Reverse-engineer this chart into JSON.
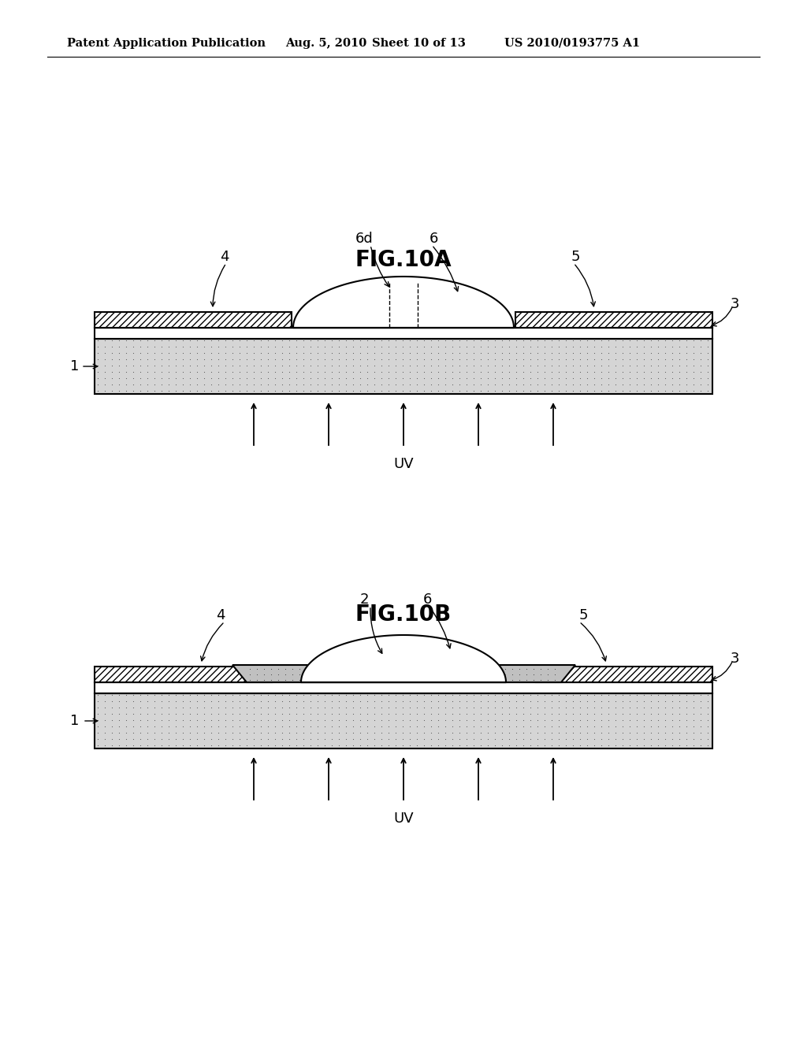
{
  "header_left": "Patent Application Publication",
  "header_date": "Aug. 5, 2010",
  "header_sheet": "Sheet 10 of 13",
  "header_right": "US 2010/0193775 A1",
  "fig_a_title": "FIG.10A",
  "fig_b_title": "FIG.10B",
  "bg_color": "#ffffff",
  "line_color": "#000000",
  "sub_color": "#d8d8d8",
  "ins_color": "#f5f5f5",
  "organic_color": "#b0b0b0"
}
